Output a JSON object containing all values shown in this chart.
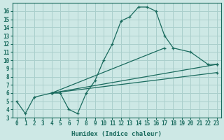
{
  "xlabel": "Humidex (Indice chaleur)",
  "bg_color": "#cde8e5",
  "grid_color": "#aacfcc",
  "line_color": "#1a6b5e",
  "xlim": [
    -0.5,
    23.5
  ],
  "ylim": [
    3,
    17
  ],
  "xticks": [
    0,
    1,
    2,
    3,
    4,
    5,
    6,
    7,
    8,
    9,
    10,
    11,
    12,
    13,
    14,
    15,
    16,
    17,
    18,
    19,
    20,
    21,
    22,
    23
  ],
  "yticks": [
    3,
    4,
    5,
    6,
    7,
    8,
    9,
    10,
    11,
    12,
    13,
    14,
    15,
    16
  ],
  "line1_x": [
    0,
    1,
    2,
    4,
    5,
    6,
    7,
    8,
    9,
    10,
    11,
    12,
    13,
    14,
    15,
    16,
    17,
    18,
    20,
    22,
    23
  ],
  "line1_y": [
    5.0,
    3.5,
    5.5,
    6.0,
    6.0,
    4.0,
    3.5,
    6.0,
    7.5,
    10.0,
    12.0,
    14.8,
    15.3,
    16.5,
    16.5,
    16.0,
    13.0,
    11.5,
    11.0,
    9.5,
    9.5
  ],
  "line2_x": [
    4,
    23
  ],
  "line2_y": [
    6.0,
    9.5
  ],
  "line3_x": [
    4,
    23
  ],
  "line3_y": [
    6.0,
    8.5
  ],
  "line4_x": [
    4,
    17
  ],
  "line4_y": [
    6.0,
    11.5
  ]
}
